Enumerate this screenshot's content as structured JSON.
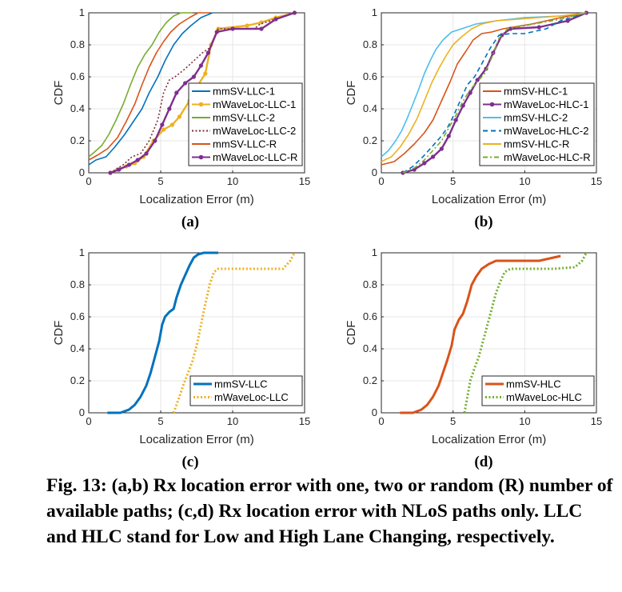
{
  "caption": "Fig. 13: (a,b) Rx location error with one, two or random (R) number of available paths; (c,d) Rx location error with NLoS paths only. LLC and HLC stand for Low and High Lane Changing, respectively.",
  "chart_data": [
    {
      "type": "line",
      "panel_label": "(a)",
      "xlabel": "Localization Error (m)",
      "ylabel": "CDF",
      "xlim": [
        0,
        15
      ],
      "ylim": [
        0,
        1
      ],
      "xticks": [
        0,
        5,
        10,
        15
      ],
      "yticks": [
        0,
        0.2,
        0.4,
        0.6,
        0.8,
        1
      ],
      "grid": true,
      "legend_position": "bottom-right",
      "series": [
        {
          "name": "mmSV-LLC-1",
          "color": "#0072BD",
          "style": "solid",
          "marker": "none",
          "x": [
            0,
            0.5,
            1.2,
            1.8,
            2.5,
            3.1,
            3.7,
            4.2,
            4.8,
            5.3,
            5.9,
            6.5,
            7.1,
            7.8,
            8.6
          ],
          "y": [
            0.05,
            0.08,
            0.1,
            0.16,
            0.24,
            0.32,
            0.4,
            0.5,
            0.6,
            0.7,
            0.8,
            0.87,
            0.92,
            0.97,
            1.0
          ]
        },
        {
          "name": "mWaveLoc-LLC-1",
          "color": "#EDB120",
          "style": "solid",
          "marker": "o",
          "x": [
            1.5,
            2.0,
            2.6,
            3.2,
            3.8,
            4.5,
            5.2,
            5.8,
            6.3,
            7.0,
            7.6,
            8.1,
            8.5,
            9.0,
            11.0,
            12.0,
            13.0,
            14.3
          ],
          "y": [
            0.0,
            0.02,
            0.04,
            0.06,
            0.1,
            0.2,
            0.27,
            0.3,
            0.35,
            0.45,
            0.55,
            0.62,
            0.8,
            0.9,
            0.92,
            0.94,
            0.97,
            1.0
          ]
        },
        {
          "name": "mmSV-LLC-2",
          "color": "#77AC30",
          "style": "solid",
          "marker": "none",
          "x": [
            0,
            0.4,
            0.9,
            1.4,
            1.9,
            2.4,
            2.9,
            3.4,
            3.9,
            4.4,
            4.9,
            5.4,
            5.9,
            6.4,
            7.2
          ],
          "y": [
            0.1,
            0.13,
            0.17,
            0.24,
            0.33,
            0.43,
            0.55,
            0.66,
            0.74,
            0.8,
            0.88,
            0.94,
            0.98,
            1.0,
            1.0
          ]
        },
        {
          "name": "mWaveLoc-LLC-2",
          "color": "#7E2F3E",
          "style": "dotted",
          "marker": "none",
          "x": [
            1.5,
            2.4,
            3.0,
            3.6,
            4.2,
            4.8,
            5.2,
            5.6,
            6.0,
            6.7,
            7.3,
            7.9,
            8.4,
            9.0,
            11.5,
            11.9,
            13.0,
            14.3
          ],
          "y": [
            0.0,
            0.05,
            0.1,
            0.12,
            0.2,
            0.33,
            0.5,
            0.58,
            0.6,
            0.65,
            0.7,
            0.75,
            0.78,
            0.9,
            0.9,
            0.93,
            0.96,
            1.0
          ]
        },
        {
          "name": "mmSV-LLC-R",
          "color": "#D95319",
          "style": "solid",
          "marker": "none",
          "x": [
            0,
            0.6,
            1.3,
            2.0,
            2.6,
            3.2,
            3.7,
            4.2,
            4.7,
            5.2,
            5.7,
            6.3,
            7.0,
            7.6,
            8.4
          ],
          "y": [
            0.08,
            0.11,
            0.15,
            0.22,
            0.32,
            0.43,
            0.55,
            0.66,
            0.75,
            0.82,
            0.88,
            0.93,
            0.97,
            1.0,
            1.0
          ]
        },
        {
          "name": "mWaveLoc-LLC-R",
          "color": "#7E2F8E",
          "style": "solid",
          "marker": "o",
          "x": [
            1.5,
            2.1,
            2.8,
            3.4,
            4.0,
            4.6,
            5.1,
            5.6,
            6.1,
            6.7,
            7.3,
            7.8,
            8.3,
            8.9,
            10.0,
            12.0,
            13.0,
            14.3
          ],
          "y": [
            0.0,
            0.02,
            0.05,
            0.08,
            0.12,
            0.2,
            0.3,
            0.4,
            0.5,
            0.56,
            0.6,
            0.67,
            0.75,
            0.88,
            0.9,
            0.9,
            0.96,
            1.0
          ]
        }
      ]
    },
    {
      "type": "line",
      "panel_label": "(b)",
      "xlabel": "Localization Error (m)",
      "ylabel": "CDF",
      "xlim": [
        0,
        15
      ],
      "ylim": [
        0,
        1
      ],
      "xticks": [
        0,
        5,
        10,
        15
      ],
      "yticks": [
        0,
        0.2,
        0.4,
        0.6,
        0.8,
        1
      ],
      "grid": true,
      "legend_position": "bottom-right",
      "series": [
        {
          "name": "mmSV-HLC-1",
          "color": "#D95319",
          "style": "solid",
          "marker": "none",
          "x": [
            0,
            0.9,
            1.6,
            2.3,
            3.0,
            3.6,
            4.2,
            4.8,
            5.3,
            5.9,
            6.4,
            7.0,
            7.7,
            8.5,
            10.5,
            12.5,
            14.3
          ],
          "y": [
            0.05,
            0.07,
            0.12,
            0.18,
            0.25,
            0.33,
            0.45,
            0.57,
            0.68,
            0.76,
            0.83,
            0.87,
            0.88,
            0.9,
            0.93,
            0.97,
            1.0
          ]
        },
        {
          "name": "mWaveLoc-HLC-1",
          "color": "#7E2F8E",
          "style": "solid",
          "marker": "o",
          "x": [
            1.5,
            2.3,
            3.0,
            3.6,
            4.2,
            4.7,
            5.2,
            5.7,
            6.2,
            6.7,
            7.3,
            7.8,
            8.4,
            9.0,
            11.0,
            13.0,
            14.3
          ],
          "y": [
            0.0,
            0.02,
            0.06,
            0.1,
            0.15,
            0.23,
            0.33,
            0.42,
            0.5,
            0.58,
            0.65,
            0.75,
            0.86,
            0.9,
            0.91,
            0.95,
            1.0
          ]
        },
        {
          "name": "mmSV-HLC-2",
          "color": "#4DBEEE",
          "style": "solid",
          "marker": "none",
          "x": [
            0,
            0.5,
            1.0,
            1.4,
            1.8,
            2.2,
            2.6,
            3.0,
            3.4,
            3.8,
            4.3,
            4.9,
            5.6,
            6.6,
            8.0,
            10.0,
            12.5,
            14.3
          ],
          "y": [
            0.1,
            0.14,
            0.2,
            0.26,
            0.34,
            0.43,
            0.52,
            0.62,
            0.7,
            0.77,
            0.83,
            0.88,
            0.9,
            0.93,
            0.95,
            0.97,
            0.98,
            1.0
          ]
        },
        {
          "name": "mWaveLoc-HLC-2",
          "color": "#0072BD",
          "style": "dashed",
          "marker": "none",
          "x": [
            1.5,
            2.2,
            2.9,
            3.5,
            4.1,
            4.6,
            5.0,
            5.5,
            6.0,
            6.5,
            7.0,
            7.6,
            8.2,
            9.0,
            10.0,
            11.5,
            12.5,
            14.3
          ],
          "y": [
            0.0,
            0.04,
            0.1,
            0.16,
            0.22,
            0.28,
            0.35,
            0.45,
            0.55,
            0.6,
            0.68,
            0.78,
            0.86,
            0.87,
            0.87,
            0.9,
            0.95,
            1.0
          ]
        },
        {
          "name": "mmSV-HLC-R",
          "color": "#EDB120",
          "style": "solid",
          "marker": "none",
          "x": [
            0,
            0.7,
            1.3,
            1.9,
            2.5,
            3.0,
            3.5,
            4.0,
            4.5,
            5.0,
            5.6,
            6.3,
            7.0,
            8.0,
            9.5,
            11.0,
            12.5,
            14.3
          ],
          "y": [
            0.07,
            0.1,
            0.16,
            0.24,
            0.34,
            0.45,
            0.56,
            0.65,
            0.73,
            0.8,
            0.85,
            0.9,
            0.93,
            0.95,
            0.96,
            0.97,
            0.98,
            1.0
          ]
        },
        {
          "name": "mWaveLoc-HLC-R",
          "color": "#77AC30",
          "style": "dashdot",
          "marker": "none",
          "x": [
            1.5,
            2.3,
            3.0,
            3.6,
            4.2,
            4.7,
            5.2,
            5.7,
            6.2,
            6.7,
            7.2,
            7.7,
            8.2,
            8.8,
            10.0,
            12.5,
            14.3
          ],
          "y": [
            0.0,
            0.03,
            0.08,
            0.14,
            0.2,
            0.28,
            0.36,
            0.45,
            0.52,
            0.57,
            0.62,
            0.72,
            0.84,
            0.9,
            0.92,
            0.96,
            1.0
          ]
        }
      ]
    },
    {
      "type": "line",
      "panel_label": "(c)",
      "xlabel": "Localization Error (m)",
      "ylabel": "CDF",
      "xlim": [
        0,
        15
      ],
      "ylim": [
        0,
        1
      ],
      "xticks": [
        0,
        5,
        10,
        15
      ],
      "yticks": [
        0,
        0.2,
        0.4,
        0.6,
        0.8,
        1
      ],
      "grid": true,
      "legend_position": "bottom-right",
      "series": [
        {
          "name": "mmSV-LLC",
          "color": "#0072BD",
          "style": "solid",
          "marker": "none",
          "x": [
            1.3,
            2.2,
            2.8,
            3.2,
            3.6,
            4.0,
            4.3,
            4.6,
            4.9,
            5.1,
            5.3,
            5.6,
            5.9,
            6.1,
            6.4,
            6.7,
            7.0,
            7.3,
            7.6,
            8.0,
            9.0
          ],
          "y": [
            0.0,
            0.0,
            0.02,
            0.05,
            0.1,
            0.17,
            0.25,
            0.35,
            0.45,
            0.55,
            0.6,
            0.63,
            0.65,
            0.72,
            0.8,
            0.86,
            0.92,
            0.97,
            0.99,
            1.0,
            1.0
          ]
        },
        {
          "name": "mWaveLoc-LLC",
          "color": "#EDB120",
          "style": "dotted",
          "marker": "none",
          "x": [
            5.9,
            6.1,
            6.3,
            6.6,
            6.9,
            7.2,
            7.5,
            7.8,
            8.1,
            8.4,
            8.7,
            9.0,
            10.5,
            12.0,
            13.5,
            14.0,
            14.3
          ],
          "y": [
            0.0,
            0.05,
            0.1,
            0.18,
            0.25,
            0.32,
            0.42,
            0.55,
            0.68,
            0.8,
            0.88,
            0.9,
            0.9,
            0.9,
            0.9,
            0.95,
            1.0
          ]
        }
      ]
    },
    {
      "type": "line",
      "panel_label": "(d)",
      "xlabel": "Localization Error (m)",
      "ylabel": "CDF",
      "xlim": [
        0,
        15
      ],
      "ylim": [
        0,
        1
      ],
      "xticks": [
        0,
        5,
        10,
        15
      ],
      "yticks": [
        0,
        0.2,
        0.4,
        0.6,
        0.8,
        1
      ],
      "grid": true,
      "legend_position": "bottom-right",
      "series": [
        {
          "name": "mmSV-HLC",
          "color": "#D95319",
          "style": "solid",
          "marker": "none",
          "x": [
            1.3,
            2.2,
            2.8,
            3.2,
            3.6,
            4.0,
            4.3,
            4.6,
            4.9,
            5.1,
            5.4,
            5.7,
            6.0,
            6.3,
            6.6,
            7.0,
            7.5,
            8.0,
            9.0,
            11.0,
            12.0,
            12.5
          ],
          "y": [
            0.0,
            0.0,
            0.02,
            0.05,
            0.1,
            0.17,
            0.25,
            0.33,
            0.42,
            0.52,
            0.58,
            0.62,
            0.7,
            0.8,
            0.85,
            0.9,
            0.93,
            0.95,
            0.95,
            0.95,
            0.97,
            0.98
          ]
        },
        {
          "name": "mWaveLoc-HLC",
          "color": "#77AC30",
          "style": "dotted",
          "marker": "none",
          "x": [
            5.8,
            6.0,
            6.2,
            6.5,
            6.8,
            7.1,
            7.4,
            7.7,
            8.0,
            8.3,
            8.6,
            9.0,
            10.5,
            12.0,
            13.5,
            14.0,
            14.3
          ],
          "y": [
            0.0,
            0.1,
            0.2,
            0.28,
            0.35,
            0.45,
            0.55,
            0.65,
            0.75,
            0.82,
            0.88,
            0.9,
            0.9,
            0.9,
            0.91,
            0.95,
            1.0
          ]
        }
      ]
    }
  ]
}
